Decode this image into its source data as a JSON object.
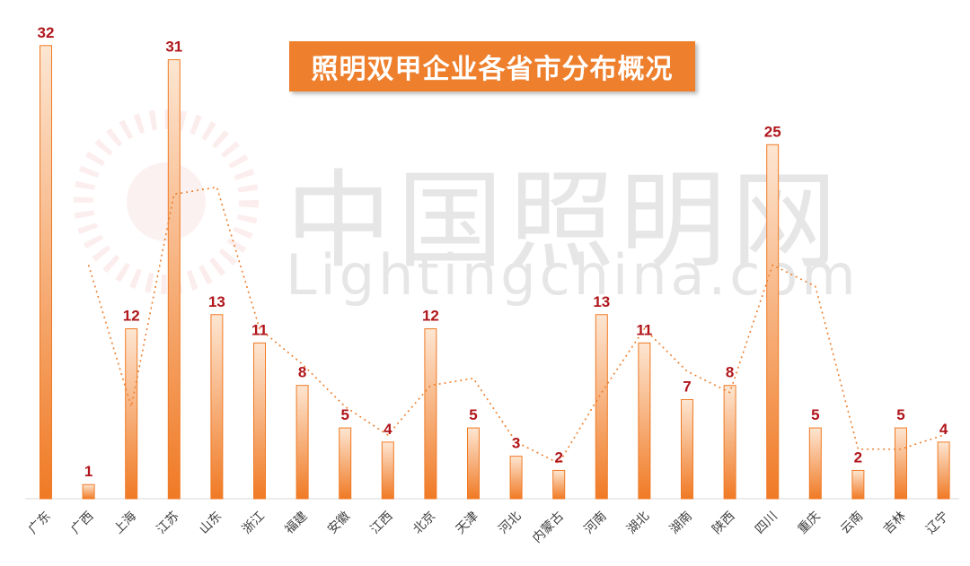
{
  "watermark": {
    "text_cn": "中国照明网",
    "text_en": "Lightingchina.com"
  },
  "colors": {
    "bar_top": "#fde6d2",
    "bar_bottom": "#f07a25",
    "trend": "#ee7f2d",
    "label": "#b0161b",
    "title_bg": "#ee7f2d"
  },
  "chart_data": {
    "type": "bar",
    "title": "照明双甲企业各省市分布概况",
    "categories": [
      "广东",
      "广西",
      "上海",
      "江苏",
      "山东",
      "浙江",
      "福建",
      "安徽",
      "江西",
      "北京",
      "天津",
      "河北",
      "内蒙古",
      "河南",
      "湖北",
      "湖南",
      "陕西",
      "四川",
      "重庆",
      "云南",
      "吉林",
      "辽宁"
    ],
    "values": [
      32,
      1,
      12,
      31,
      13,
      11,
      8,
      5,
      4,
      12,
      5,
      3,
      2,
      13,
      11,
      7,
      8,
      25,
      5,
      2,
      5,
      4
    ],
    "ylim": [
      0,
      33
    ],
    "grid": false,
    "trendline": "dotted moving average"
  }
}
